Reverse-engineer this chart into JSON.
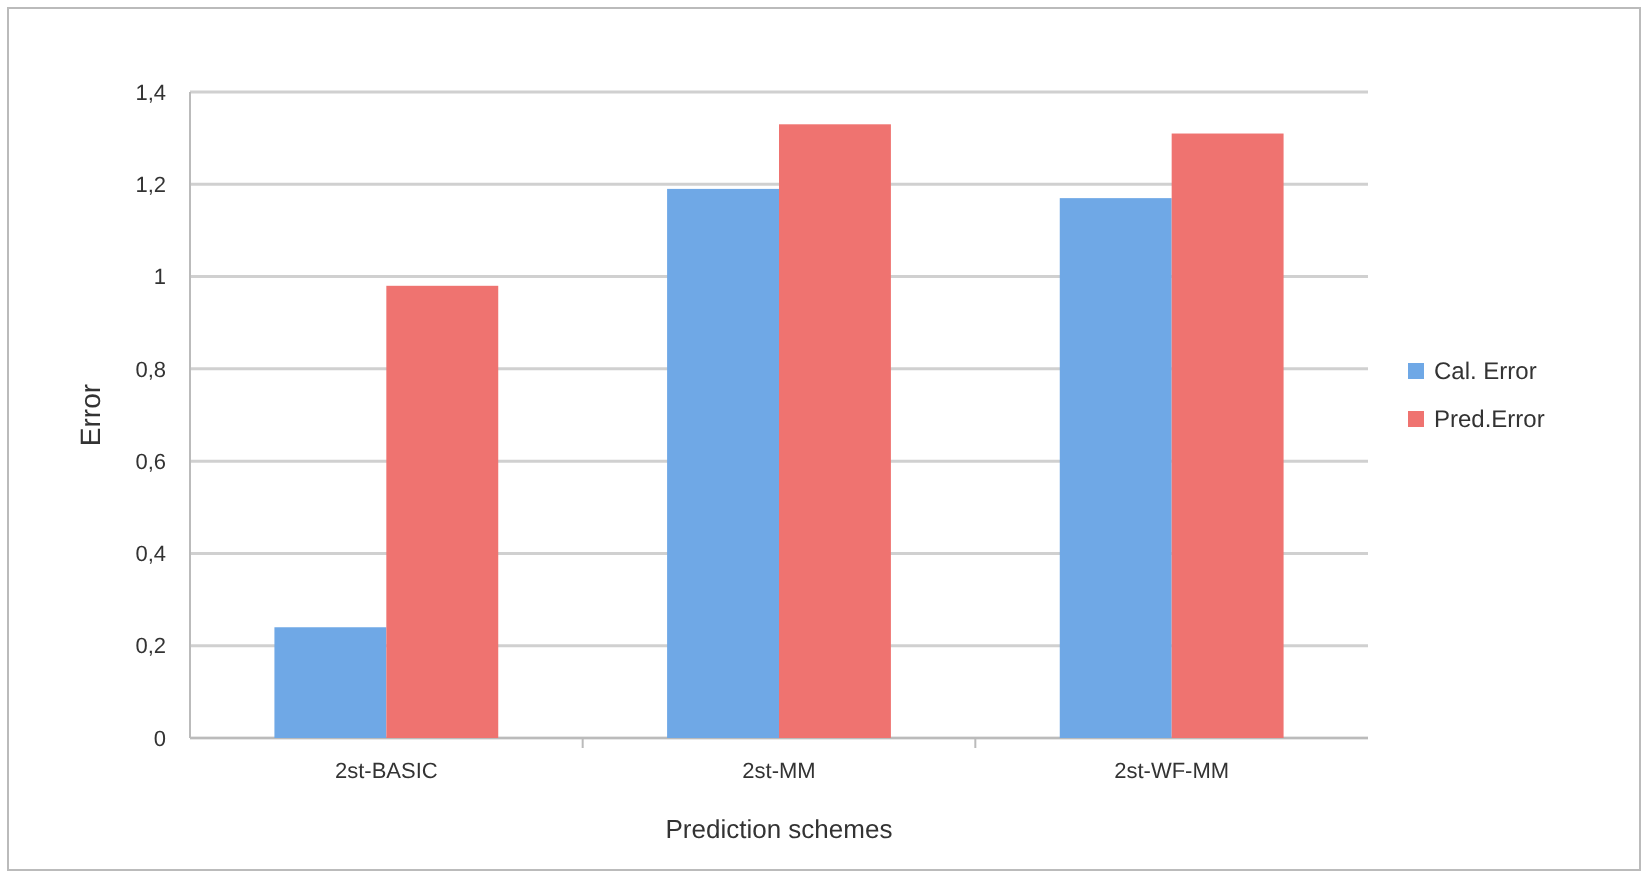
{
  "chart_data": {
    "type": "bar",
    "xlabel": "Prediction schemes",
    "ylabel": "Error",
    "categories": [
      "2st-BASIC",
      "2st-MM",
      "2st-WF-MM"
    ],
    "series": [
      {
        "name": "Cal. Error",
        "color": "#6fa8e6",
        "values": [
          0.24,
          1.19,
          1.17
        ]
      },
      {
        "name": "Pred.Error",
        "color": "#ef7370",
        "values": [
          0.98,
          1.33,
          1.31
        ]
      }
    ],
    "ylim": [
      0,
      1.4
    ],
    "yticks": [
      0,
      {
        "value": 0.2,
        "label": "0,2"
      },
      {
        "value": 0.4,
        "label": "0,4"
      },
      {
        "value": 0.6,
        "label": "0,6"
      },
      {
        "value": 0.8,
        "label": "0,8"
      },
      1,
      {
        "value": 1.2,
        "label": "1,2"
      },
      {
        "value": 1.4,
        "label": "1,4"
      }
    ],
    "grid": "y",
    "legend": "right"
  }
}
